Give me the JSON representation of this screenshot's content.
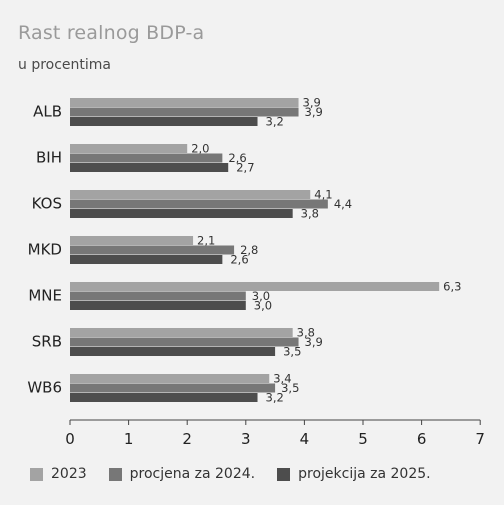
{
  "title": "Rast realnog BDP-a",
  "subtitle": "u procentima",
  "chart_data": {
    "type": "bar",
    "orientation": "horizontal",
    "categories": [
      "ALB",
      "BIH",
      "KOS",
      "MKD",
      "MNE",
      "SRB",
      "WB6"
    ],
    "series": [
      {
        "name": "2023",
        "values": [
          3.9,
          2.0,
          4.1,
          2.1,
          6.3,
          3.8,
          3.4
        ],
        "labels": [
          "3,9",
          "2,0",
          "4,1",
          "2,1",
          "6,3",
          "3,8",
          "3,4"
        ],
        "color": "#a3a3a3"
      },
      {
        "name": "procjena za 2024.",
        "values": [
          3.9,
          2.6,
          4.4,
          2.8,
          3.0,
          3.9,
          3.5
        ],
        "labels": [
          "3,9",
          "2,6",
          "4,4",
          "2,8",
          "3,0",
          "3,9",
          "3,5"
        ],
        "color": "#777777"
      },
      {
        "name": "projekcija za 2025.",
        "values": [
          3.2,
          2.7,
          3.8,
          2.6,
          3.0,
          3.5,
          3.2
        ],
        "labels": [
          "3,2",
          "2,7",
          "3,8",
          "2,6",
          "3,0",
          "3,5",
          "3,2"
        ],
        "color": "#4d4d4d"
      }
    ],
    "xlim": [
      0,
      7
    ],
    "xticks": [
      "0",
      "1",
      "2",
      "3",
      "4",
      "5",
      "6",
      "7"
    ],
    "grid": false,
    "legend_position": "bottom"
  }
}
